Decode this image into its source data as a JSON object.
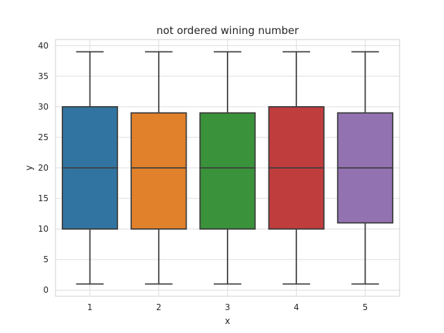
{
  "chart_data": {
    "type": "box",
    "title": "not ordered wining number",
    "xlabel": "x",
    "ylabel": "y",
    "ylim": [
      -1,
      41
    ],
    "yticks": [
      0,
      5,
      10,
      15,
      20,
      25,
      30,
      35,
      40
    ],
    "grid": true,
    "categories": [
      "1",
      "2",
      "3",
      "4",
      "5"
    ],
    "colors": [
      "#3274a1",
      "#e1812c",
      "#3a923a",
      "#c03d3e",
      "#9372b2"
    ],
    "boxes": [
      {
        "category": "1",
        "min": 1,
        "q1": 10,
        "median": 20,
        "q3": 30,
        "max": 39
      },
      {
        "category": "2",
        "min": 1,
        "q1": 10,
        "median": 20,
        "q3": 29,
        "max": 39
      },
      {
        "category": "3",
        "min": 1,
        "q1": 10,
        "median": 20,
        "q3": 29,
        "max": 39
      },
      {
        "category": "4",
        "min": 1,
        "q1": 10,
        "median": 20,
        "q3": 30,
        "max": 39
      },
      {
        "category": "5",
        "min": 1,
        "q1": 11,
        "median": 20,
        "q3": 29,
        "max": 39
      }
    ]
  }
}
